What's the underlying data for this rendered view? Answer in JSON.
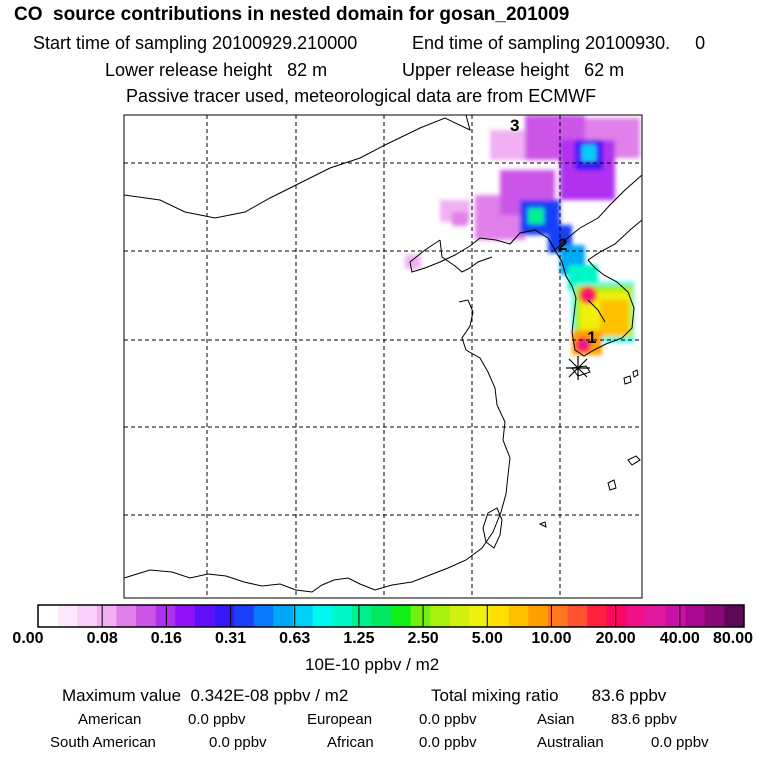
{
  "header": {
    "title": "CO  source contributions in nested domain for gosan_201009",
    "start_label": "Start time of sampling 20100929.210000",
    "end_label": "End time of sampling 20100930.     0",
    "lower_label": "Lower release height   82 m",
    "upper_label": "Upper release height   62 m",
    "tracer_label": "Passive tracer used, meteorological data are from ECMWF"
  },
  "map": {
    "markers": [
      "1",
      "2",
      "3"
    ]
  },
  "colorbar": {
    "labels": [
      "0.00",
      "0.08",
      "0.16",
      "0.31",
      "0.63",
      "1.25",
      "2.50",
      "5.00",
      "10.00",
      "20.00",
      "40.00",
      "80.00"
    ],
    "unit": "10E-10 ppbv / m2",
    "colors": [
      "#ffffff",
      "#fde8fd",
      "#f8d0f8",
      "#f0b0f2",
      "#e080ea",
      "#cc55e8",
      "#b030f0",
      "#9010f8",
      "#6010f8",
      "#3818f8",
      "#1840f8",
      "#0878f8",
      "#00a8f8",
      "#00d0f8",
      "#00f8f0",
      "#00f8c8",
      "#00f090",
      "#00e860",
      "#10f018",
      "#70f010",
      "#a8f010",
      "#d0f010",
      "#f0f010",
      "#ffe000",
      "#ffc000",
      "#ffa000",
      "#ff7820",
      "#ff5030",
      "#ff2040",
      "#f80860",
      "#f01088",
      "#e018a0",
      "#c810a8",
      "#a80890",
      "#880878",
      "#600858"
    ]
  },
  "stats": {
    "max_label": "Maximum value  0.342E-08 ppbv / m2",
    "total_label": "Total mixing ratio       83.6 ppbv",
    "regions": [
      {
        "name": "American",
        "value": "0.0 ppbv"
      },
      {
        "name": "European",
        "value": "0.0 ppbv"
      },
      {
        "name": "Asian",
        "value": "83.6 ppbv"
      },
      {
        "name": "South American",
        "value": "0.0 ppbv"
      },
      {
        "name": "African",
        "value": "0.0 ppbv"
      },
      {
        "name": "Australian",
        "value": "0.0 ppbv"
      }
    ]
  }
}
